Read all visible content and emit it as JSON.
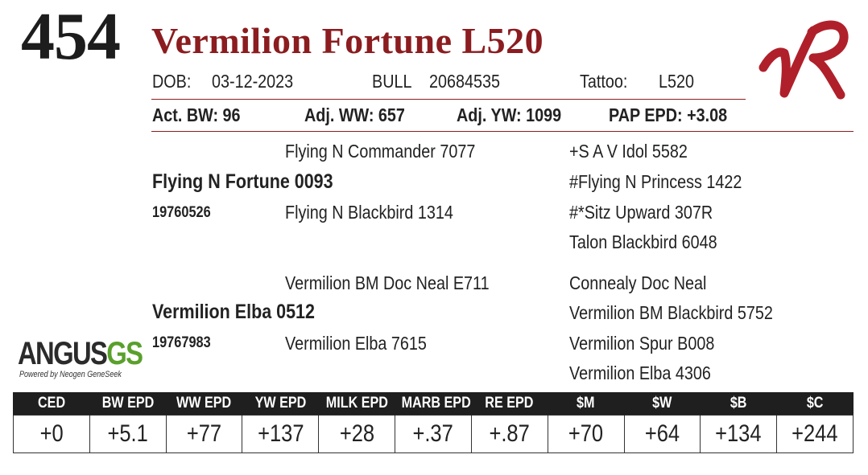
{
  "lot_number": "454",
  "animal_name": "Vermilion Fortune L520",
  "info_line": {
    "dob_label": "DOB:",
    "dob_value": "03-12-2023",
    "sex_label": "BULL",
    "registration": "20684535",
    "tattoo_label": "Tattoo:",
    "tattoo_value": "L520"
  },
  "performance": {
    "act_bw": "Act. BW: 96",
    "adj_ww": "Adj. WW: 657",
    "adj_yw": "Adj. YW: 1099",
    "pap_epd": "PAP EPD: +3.08"
  },
  "pedigree": {
    "sire": {
      "name": "Flying N Fortune 0093",
      "reg": "19760526",
      "sire": "Flying N Commander 7077",
      "dam": "Flying N Blackbird 1314",
      "sire_sire": "+S A V Idol 5582",
      "sire_dam": "#Flying N Princess 1422",
      "dam_sire": "#*Sitz Upward 307R",
      "dam_dam": "Talon Blackbird 6048"
    },
    "dam": {
      "name": "Vermilion Elba 0512",
      "reg": "19767983",
      "sire": "Vermilion BM Doc Neal E711",
      "dam": "Vermilion Elba 7615",
      "sire_sire": "Connealy Doc Neal",
      "sire_dam": "Vermilion BM Blackbird 5752",
      "dam_sire": "Vermilion Spur B008",
      "dam_dam": "Vermilion Elba 4306"
    }
  },
  "genomic_logo": {
    "word": "ANGUS",
    "suffix": "GS",
    "tagline": "Powered by Neogen GeneSeek"
  },
  "brand_logo": {
    "icon": "vr-brand-icon",
    "color": "#b0202a"
  },
  "epd_table": {
    "headers": [
      "CED",
      "BW EPD",
      "WW EPD",
      "YW EPD",
      "MILK EPD",
      "MARB EPD",
      "RE EPD",
      "$M",
      "$W",
      "$B",
      "$C"
    ],
    "values": [
      "+0",
      "+5.1",
      "+77",
      "+137",
      "+28",
      "+.37",
      "+.87",
      "+70",
      "+64",
      "+134",
      "+244"
    ]
  },
  "colors": {
    "accent": "#8b1c1f",
    "header_bg": "#1f1f1f",
    "angus_gs": "#5aa02c"
  }
}
